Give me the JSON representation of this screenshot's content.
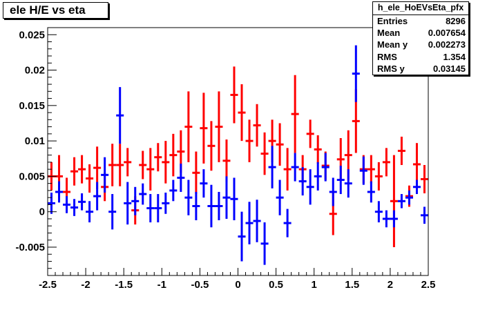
{
  "title": "ele H/E vs eta",
  "stats": {
    "name": "h_ele_HoEVsEta_pfx",
    "rows": [
      {
        "label": "Entries",
        "value": "8296"
      },
      {
        "label": "Mean",
        "value": "0.007654"
      },
      {
        "label": "Mean y",
        "value": "0.002273"
      },
      {
        "label": "RMS",
        "value": "1.354"
      },
      {
        "label": "RMS y",
        "value": "0.03145"
      }
    ]
  },
  "chart_data": {
    "type": "scatter",
    "title": "ele H/E vs eta",
    "xlabel": "",
    "ylabel": "",
    "xlim": [
      -2.5,
      2.5
    ],
    "ylim": [
      -0.009,
      0.026
    ],
    "x_tick_labels": [
      "-2.5",
      "-2",
      "-1.5",
      "-1",
      "-0.5",
      "0",
      "0.5",
      "1",
      "1.5",
      "2",
      "2.5"
    ],
    "y_tick_labels": [
      "-0.005",
      "0",
      "0.005",
      "0.01",
      "0.015",
      "0.02",
      "0.025"
    ],
    "x_ticks": [
      -2.5,
      -2,
      -1.5,
      -1,
      -0.5,
      0,
      0.5,
      1,
      1.5,
      2,
      2.5
    ],
    "y_ticks": [
      -0.005,
      0,
      0.005,
      0.01,
      0.015,
      0.02,
      0.025
    ],
    "bin_half_width": 0.05,
    "grid": false,
    "series": [
      {
        "color": "#ff0000",
        "points": [
          {
            "x": -2.45,
            "y": 0.005,
            "err": 0.002
          },
          {
            "x": -2.35,
            "y": 0.005,
            "err": 0.003
          },
          {
            "x": -2.25,
            "y": 0.0028,
            "err": 0.002
          },
          {
            "x": -2.15,
            "y": 0.0057,
            "err": 0.002
          },
          {
            "x": -2.05,
            "y": 0.006,
            "err": 0.002
          },
          {
            "x": -1.95,
            "y": 0.0047,
            "err": 0.002
          },
          {
            "x": -1.85,
            "y": 0.0062,
            "err": 0.003
          },
          {
            "x": -1.75,
            "y": 0.0035,
            "err": 0.002
          },
          {
            "x": -1.65,
            "y": 0.0066,
            "err": 0.003
          },
          {
            "x": -1.55,
            "y": 0.0066,
            "err": 0.003
          },
          {
            "x": -1.45,
            "y": 0.007,
            "err": 0.002
          },
          {
            "x": -1.35,
            "y": 0.0002,
            "err": 0.002
          },
          {
            "x": -1.25,
            "y": 0.0066,
            "err": 0.002
          },
          {
            "x": -1.15,
            "y": 0.006,
            "err": 0.003
          },
          {
            "x": -1.05,
            "y": 0.0077,
            "err": 0.002
          },
          {
            "x": -0.95,
            "y": 0.007,
            "err": 0.003
          },
          {
            "x": -0.85,
            "y": 0.008,
            "err": 0.003
          },
          {
            "x": -0.75,
            "y": 0.0085,
            "err": 0.003
          },
          {
            "x": -0.65,
            "y": 0.012,
            "err": 0.005
          },
          {
            "x": -0.55,
            "y": 0.0055,
            "err": 0.003
          },
          {
            "x": -0.45,
            "y": 0.0118,
            "err": 0.005
          },
          {
            "x": -0.35,
            "y": 0.0093,
            "err": 0.0035
          },
          {
            "x": -0.25,
            "y": 0.012,
            "err": 0.005
          },
          {
            "x": -0.15,
            "y": 0.0072,
            "err": 0.003
          },
          {
            "x": -0.05,
            "y": 0.0165,
            "err": 0.004
          },
          {
            "x": 0.05,
            "y": 0.014,
            "err": 0.004
          },
          {
            "x": 0.15,
            "y": 0.01,
            "err": 0.003
          },
          {
            "x": 0.25,
            "y": 0.0122,
            "err": 0.003
          },
          {
            "x": 0.35,
            "y": 0.0082,
            "err": 0.003
          },
          {
            "x": 0.45,
            "y": 0.01,
            "err": 0.003
          },
          {
            "x": 0.55,
            "y": 0.0095,
            "err": 0.003
          },
          {
            "x": 0.65,
            "y": 0.006,
            "err": 0.003
          },
          {
            "x": 0.75,
            "y": 0.0138,
            "err": 0.0055
          },
          {
            "x": 0.85,
            "y": 0.006,
            "err": 0.002
          },
          {
            "x": 0.95,
            "y": 0.011,
            "err": 0.002
          },
          {
            "x": 1.05,
            "y": 0.0088,
            "err": 0.002
          },
          {
            "x": 1.15,
            "y": 0.0065,
            "err": 0.002
          },
          {
            "x": 1.25,
            "y": -0.0003,
            "err": 0.003
          },
          {
            "x": 1.35,
            "y": 0.0074,
            "err": 0.003
          },
          {
            "x": 1.45,
            "y": 0.008,
            "err": 0.0035
          },
          {
            "x": 1.55,
            "y": 0.0128,
            "err": 0.0045
          },
          {
            "x": 1.65,
            "y": 0.006,
            "err": 0.002
          },
          {
            "x": 1.75,
            "y": 0.006,
            "err": 0.002
          },
          {
            "x": 1.85,
            "y": 0.005,
            "err": 0.002
          },
          {
            "x": 1.95,
            "y": 0.007,
            "err": 0.002
          },
          {
            "x": 2.05,
            "y": 0.0015,
            "err": 0.0065
          },
          {
            "x": 2.15,
            "y": 0.0086,
            "err": 0.002
          },
          {
            "x": 2.25,
            "y": 0.0022,
            "err": 0.0015
          },
          {
            "x": 2.35,
            "y": 0.0067,
            "err": 0.003
          },
          {
            "x": 2.45,
            "y": 0.0046,
            "err": 0.002
          }
        ]
      },
      {
        "color": "#0000ff",
        "points": [
          {
            "x": -2.45,
            "y": 0.0012,
            "err": 0.0015
          },
          {
            "x": -2.35,
            "y": 0.0028,
            "err": 0.0015
          },
          {
            "x": -2.25,
            "y": 0.001,
            "err": 0.0012
          },
          {
            "x": -2.15,
            "y": 0.0006,
            "err": 0.0012
          },
          {
            "x": -2.05,
            "y": 0.0014,
            "err": 0.0012
          },
          {
            "x": -1.95,
            "y": 0.0,
            "err": 0.0015
          },
          {
            "x": -1.85,
            "y": 0.0022,
            "err": 0.002
          },
          {
            "x": -1.75,
            "y": 0.0052,
            "err": 0.0025
          },
          {
            "x": -1.65,
            "y": 0.0,
            "err": 0.0025
          },
          {
            "x": -1.55,
            "y": 0.0136,
            "err": 0.004
          },
          {
            "x": -1.45,
            "y": 0.0012,
            "err": 0.003
          },
          {
            "x": -1.35,
            "y": 0.0015,
            "err": 0.002
          },
          {
            "x": -1.25,
            "y": 0.0025,
            "err": 0.0015
          },
          {
            "x": -1.15,
            "y": 0.0005,
            "err": 0.002
          },
          {
            "x": -1.05,
            "y": 0.0005,
            "err": 0.002
          },
          {
            "x": -0.95,
            "y": 0.0012,
            "err": 0.0015
          },
          {
            "x": -0.85,
            "y": 0.003,
            "err": 0.0015
          },
          {
            "x": -0.75,
            "y": 0.0048,
            "err": 0.002
          },
          {
            "x": -0.65,
            "y": 0.002,
            "err": 0.0025
          },
          {
            "x": -0.55,
            "y": 0.0008,
            "err": 0.002
          },
          {
            "x": -0.45,
            "y": 0.004,
            "err": 0.002
          },
          {
            "x": -0.35,
            "y": 0.0008,
            "err": 0.003
          },
          {
            "x": -0.25,
            "y": 0.0008,
            "err": 0.002
          },
          {
            "x": -0.15,
            "y": 0.002,
            "err": 0.003
          },
          {
            "x": -0.05,
            "y": 0.0018,
            "err": 0.003
          },
          {
            "x": 0.05,
            "y": -0.0035,
            "err": 0.0035
          },
          {
            "x": 0.15,
            "y": -0.0016,
            "err": 0.003
          },
          {
            "x": 0.25,
            "y": -0.0013,
            "err": 0.003
          },
          {
            "x": 0.35,
            "y": -0.0045,
            "err": 0.003
          },
          {
            "x": 0.45,
            "y": 0.0063,
            "err": 0.003
          },
          {
            "x": 0.55,
            "y": 0.002,
            "err": 0.0025
          },
          {
            "x": 0.65,
            "y": -0.0016,
            "err": 0.002
          },
          {
            "x": 0.75,
            "y": 0.0063,
            "err": 0.002
          },
          {
            "x": 0.85,
            "y": 0.0043,
            "err": 0.002
          },
          {
            "x": 0.95,
            "y": 0.0035,
            "err": 0.0025
          },
          {
            "x": 1.05,
            "y": 0.005,
            "err": 0.002
          },
          {
            "x": 1.15,
            "y": 0.0063,
            "err": 0.002
          },
          {
            "x": 1.25,
            "y": 0.0028,
            "err": 0.002
          },
          {
            "x": 1.35,
            "y": 0.0045,
            "err": 0.002
          },
          {
            "x": 1.45,
            "y": 0.004,
            "err": 0.002
          },
          {
            "x": 1.55,
            "y": 0.0195,
            "err": 0.004
          },
          {
            "x": 1.65,
            "y": 0.0058,
            "err": 0.002
          },
          {
            "x": 1.75,
            "y": 0.0028,
            "err": 0.0015
          },
          {
            "x": 1.85,
            "y": 0.0,
            "err": 0.0015
          },
          {
            "x": 1.95,
            "y": -0.001,
            "err": 0.0012
          },
          {
            "x": 2.05,
            "y": -0.001,
            "err": 0.0012
          },
          {
            "x": 2.15,
            "y": 0.0015,
            "err": 0.001
          },
          {
            "x": 2.25,
            "y": 0.002,
            "err": 0.001
          },
          {
            "x": 2.35,
            "y": 0.0035,
            "err": 0.001
          },
          {
            "x": 2.45,
            "y": -0.0005,
            "err": 0.0012
          }
        ]
      }
    ]
  }
}
